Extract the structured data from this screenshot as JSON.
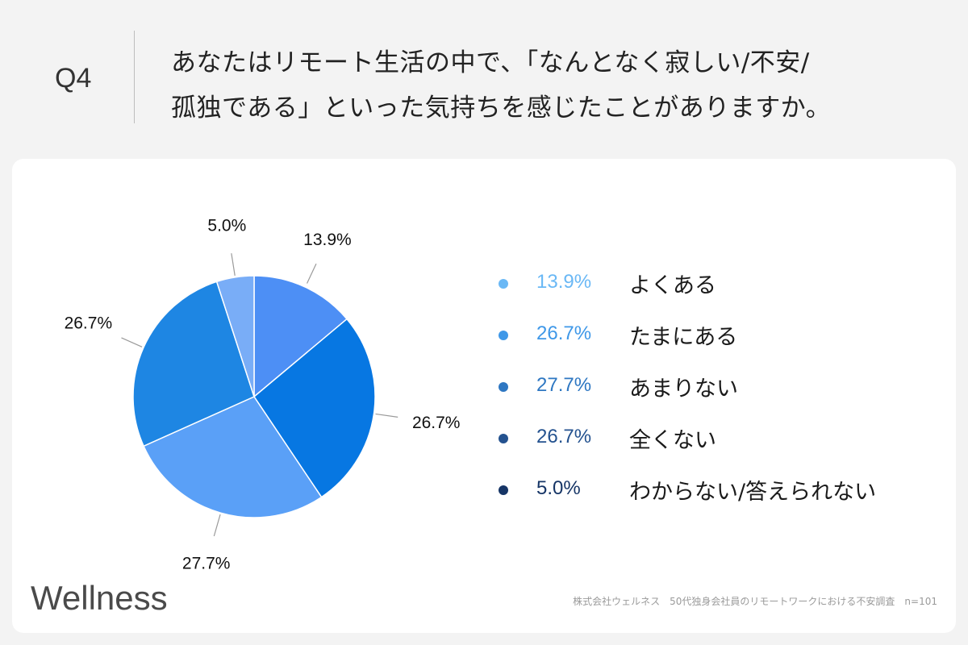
{
  "header": {
    "q_label": "Q4",
    "question_line1": "あなたはリモート生活の中で、「なんとなく寂しい/不安/",
    "question_line2": "孤独である」といった気持ちを感じたことがありますか。"
  },
  "chart_data": {
    "type": "pie",
    "start_angle_deg": 0,
    "direction": "clockwise",
    "slices": [
      {
        "label": "よくある",
        "value": 13.9,
        "display": "13.9%",
        "color": "#4d8ff5"
      },
      {
        "label": "たまにある",
        "value": 26.7,
        "display": "26.7%",
        "color": "#0777e2"
      },
      {
        "label": "あまりない",
        "value": 27.7,
        "display": "27.7%",
        "color": "#5aa0f7"
      },
      {
        "label": "全くない",
        "value": 26.7,
        "display": "26.7%",
        "color": "#1e86e3"
      },
      {
        "label": "わからない/答えられない",
        "value": 5.0,
        "display": "5.0%",
        "color": "#79adf7"
      }
    ],
    "legend_position": "right"
  },
  "legend": [
    {
      "value": "13.9%",
      "label": "よくある",
      "color": "#6ab8f5"
    },
    {
      "value": "26.7%",
      "label": "たまにある",
      "color": "#3f98e8"
    },
    {
      "value": "27.7%",
      "label": "あまりない",
      "color": "#2e77c2"
    },
    {
      "value": "26.7%",
      "label": "全くない",
      "color": "#24528f"
    },
    {
      "value": "5.0%",
      "label": "わからない/答えられない",
      "color": "#163566"
    }
  ],
  "brand": {
    "logo": "Wellness"
  },
  "footnote": "株式会社ウェルネス　50代独身会社員のリモートワークにおける不安調査　n=101"
}
